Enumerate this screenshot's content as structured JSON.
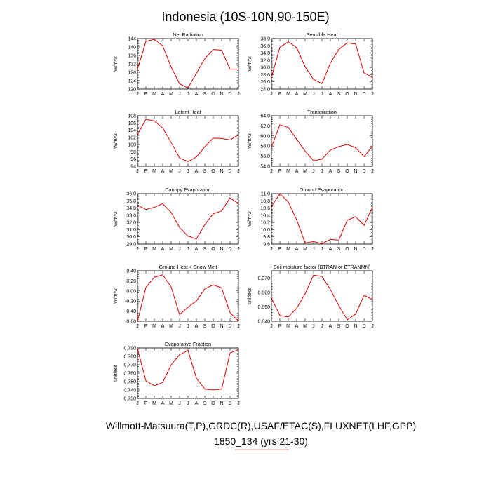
{
  "figure": {
    "title": "Indonesia (10S-10N,90-150E)",
    "footer_line1": "Willmott-Matsuura(T,P),GRDC(R),USAF/ETAC(S),FLUXNET(LHF,GPP)",
    "footer_line2": "1850_134 (yrs 21-30)"
  },
  "colors": {
    "line": "#e00000",
    "axis": "#000000",
    "footer_underline": "#e06a6a"
  },
  "chart_data": [
    {
      "type": "line",
      "title": "Net Radiation",
      "ylabel": "W/m^2",
      "x": [
        "J",
        "F",
        "M",
        "A",
        "M",
        "J",
        "J",
        "A",
        "S",
        "O",
        "N",
        "D",
        "J"
      ],
      "ylim": [
        120,
        144
      ],
      "yticks": [
        120,
        124,
        128,
        132,
        136,
        140,
        144
      ],
      "ytick_labels": [
        "120",
        "124",
        "128",
        "132",
        "136",
        "140",
        "144"
      ],
      "values": [
        129.5,
        142.6,
        143.7,
        140.5,
        130.5,
        122.5,
        120.5,
        127.5,
        134.5,
        138.8,
        138.5,
        129.5,
        129.5
      ]
    },
    {
      "type": "line",
      "title": "Sensible Heat",
      "ylabel": "W/m^2",
      "x": [
        "J",
        "F",
        "M",
        "A",
        "M",
        "J",
        "J",
        "A",
        "S",
        "O",
        "N",
        "D",
        "J"
      ],
      "ylim": [
        24,
        38
      ],
      "yticks": [
        24,
        26,
        28,
        30,
        32,
        34,
        36,
        38
      ],
      "ytick_labels": [
        "24.0",
        "26.0",
        "28.0",
        "30.0",
        "32.0",
        "34.0",
        "36.0",
        "38.0"
      ],
      "values": [
        27.2,
        35.6,
        37.1,
        35.5,
        30.2,
        26.7,
        25.5,
        31.2,
        35.0,
        36.8,
        36.5,
        28.5,
        27.3
      ]
    },
    {
      "type": "line",
      "title": "Latent Heat",
      "ylabel": "W/m^2",
      "x": [
        "J",
        "F",
        "M",
        "A",
        "M",
        "J",
        "J",
        "A",
        "S",
        "O",
        "N",
        "D",
        "J"
      ],
      "ylim": [
        94,
        108
      ],
      "yticks": [
        94,
        96,
        98,
        100,
        102,
        104,
        106,
        108
      ],
      "ytick_labels": [
        "94",
        "96",
        "98",
        "100",
        "102",
        "104",
        "106",
        "108"
      ],
      "values": [
        102.8,
        107.0,
        106.6,
        104.6,
        100.6,
        96.3,
        95.3,
        96.6,
        99.4,
        101.8,
        101.7,
        101.3,
        102.7
      ]
    },
    {
      "type": "line",
      "title": "Transpiration",
      "ylabel": "W/m^2",
      "x": [
        "J",
        "F",
        "M",
        "A",
        "M",
        "J",
        "J",
        "A",
        "S",
        "O",
        "N",
        "D",
        "J"
      ],
      "ylim": [
        54,
        64
      ],
      "yticks": [
        54,
        56,
        58,
        60,
        62,
        64
      ],
      "ytick_labels": [
        "54.0",
        "56.0",
        "58.0",
        "60.0",
        "62.0",
        "64.0"
      ],
      "values": [
        57.8,
        62.2,
        61.7,
        59.3,
        57.0,
        55.1,
        55.4,
        57.2,
        57.9,
        58.3,
        57.7,
        55.9,
        58.0
      ]
    },
    {
      "type": "line",
      "title": "Canopy Evaporation",
      "ylabel": "W/m^2",
      "x": [
        "J",
        "F",
        "M",
        "A",
        "M",
        "J",
        "J",
        "A",
        "S",
        "O",
        "N",
        "D",
        "J"
      ],
      "ylim": [
        29,
        36
      ],
      "yticks": [
        29,
        30,
        31,
        32,
        33,
        34,
        35,
        36
      ],
      "ytick_labels": [
        "29.0",
        "30.0",
        "31.0",
        "32.0",
        "33.0",
        "34.0",
        "35.0",
        "36.0"
      ],
      "values": [
        34.4,
        33.8,
        34.1,
        34.6,
        33.4,
        31.3,
        30.1,
        29.7,
        31.7,
        33.2,
        33.6,
        35.4,
        34.6
      ]
    },
    {
      "type": "line",
      "title": "Ground Evaporation",
      "ylabel": "W/m^2",
      "x": [
        "J",
        "F",
        "M",
        "A",
        "M",
        "J",
        "J",
        "A",
        "S",
        "O",
        "N",
        "D",
        "J"
      ],
      "ylim": [
        9.6,
        11.0
      ],
      "yticks": [
        9.6,
        9.8,
        10.0,
        10.2,
        10.4,
        10.6,
        10.8,
        11.0
      ],
      "ytick_labels": [
        "9.6",
        "9.8",
        "10.0",
        "10.2",
        "10.4",
        "10.6",
        "10.8",
        "11.0"
      ],
      "values": [
        10.64,
        11.0,
        10.77,
        10.27,
        9.63,
        9.67,
        9.61,
        9.73,
        9.71,
        10.26,
        10.36,
        10.12,
        10.62
      ]
    },
    {
      "type": "line",
      "title": "Ground Heat + Snow Melt",
      "ylabel": "W/m^2",
      "x": [
        "J",
        "F",
        "M",
        "A",
        "M",
        "J",
        "J",
        "A",
        "S",
        "O",
        "N",
        "D",
        "J"
      ],
      "ylim": [
        -0.6,
        0.4
      ],
      "yticks": [
        -0.6,
        -0.4,
        -0.2,
        0.0,
        0.2,
        0.4
      ],
      "ytick_labels": [
        "-0.60",
        "-0.40",
        "-0.20",
        "0.00",
        "0.20",
        "0.40"
      ],
      "values": [
        -0.6,
        0.07,
        0.27,
        0.32,
        0.08,
        -0.47,
        -0.32,
        -0.2,
        0.04,
        0.12,
        0.06,
        -0.43,
        -0.6
      ]
    },
    {
      "type": "line",
      "title": "Soil moisture factor (BTRAN or BTRANMN)",
      "ylabel": "unitless",
      "x": [
        "J",
        "F",
        "M",
        "A",
        "M",
        "J",
        "J",
        "A",
        "S",
        "O",
        "N",
        "D",
        "J"
      ],
      "ylim": [
        0.84,
        0.875
      ],
      "yticks": [
        0.84,
        0.85,
        0.86,
        0.87
      ],
      "ytick_labels": [
        "0.840",
        "0.850",
        "0.860",
        "0.870"
      ],
      "values": [
        0.856,
        0.844,
        0.843,
        0.849,
        0.859,
        0.872,
        0.871,
        0.862,
        0.851,
        0.841,
        0.845,
        0.858,
        0.855
      ]
    },
    {
      "type": "line",
      "title": "Evaporative Fraction",
      "ylabel": "unitless",
      "x": [
        "J",
        "F",
        "M",
        "A",
        "M",
        "J",
        "J",
        "A",
        "S",
        "O",
        "N",
        "D",
        "J"
      ],
      "ylim": [
        0.73,
        0.79
      ],
      "yticks": [
        0.73,
        0.74,
        0.75,
        0.76,
        0.77,
        0.78,
        0.79
      ],
      "ytick_labels": [
        "0.730",
        "0.740",
        "0.750",
        "0.760",
        "0.770",
        "0.780",
        "0.790"
      ],
      "values": [
        0.789,
        0.751,
        0.745,
        0.749,
        0.77,
        0.782,
        0.787,
        0.754,
        0.741,
        0.74,
        0.741,
        0.784,
        0.788
      ]
    }
  ]
}
